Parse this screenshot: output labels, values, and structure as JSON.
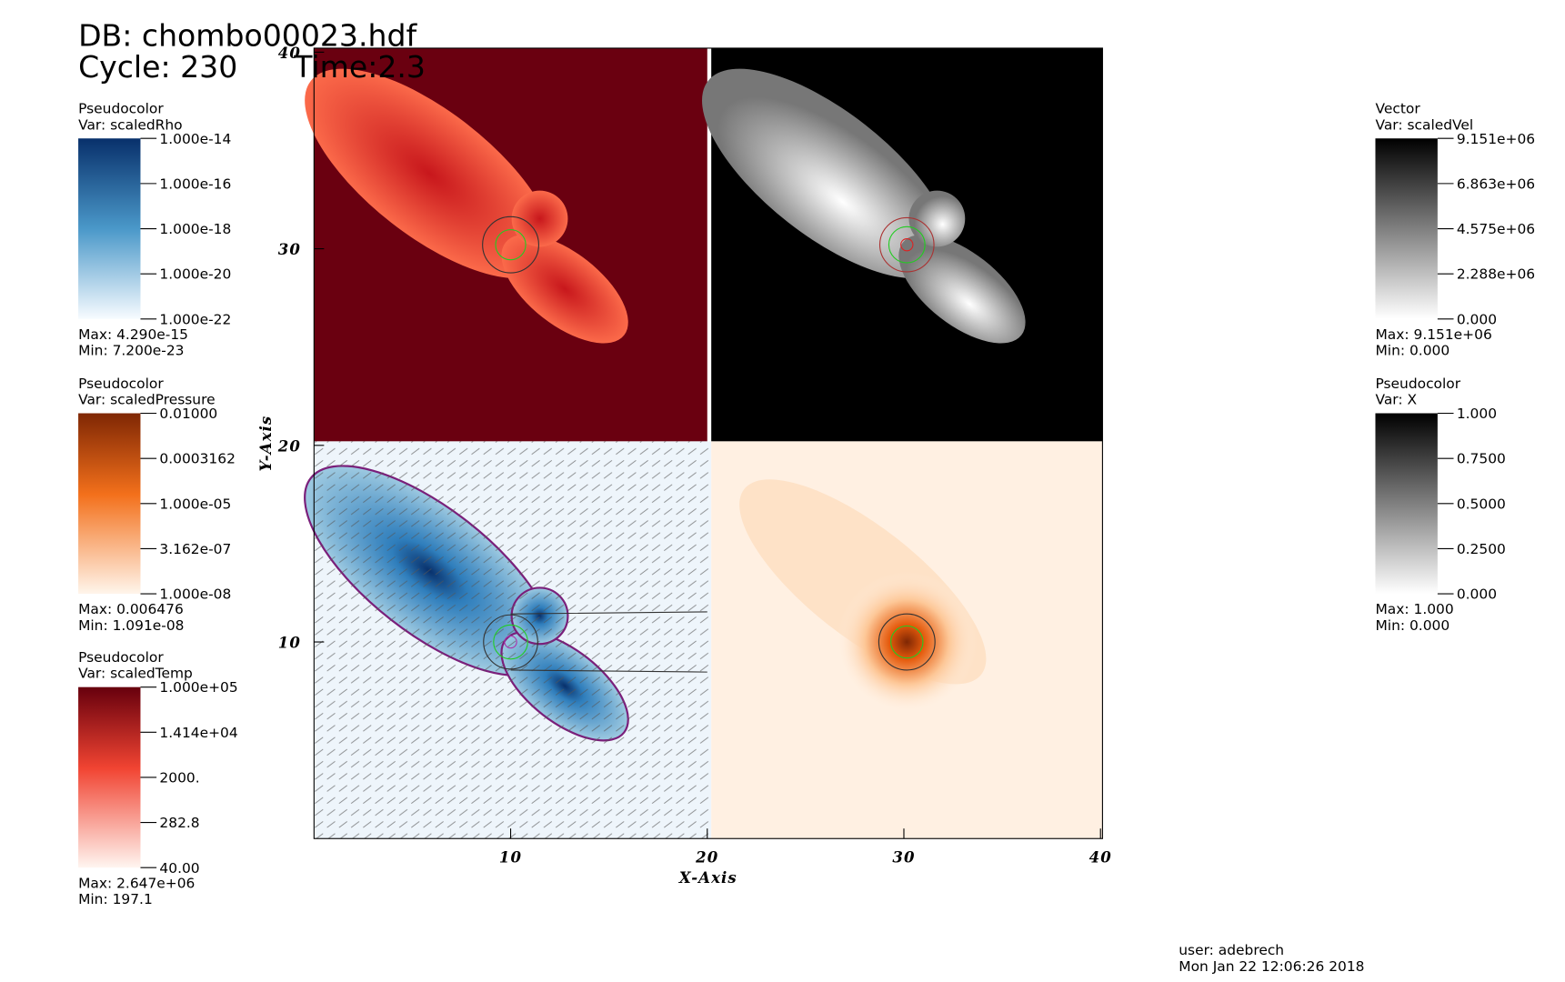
{
  "header": {
    "db": "DB: chombo00023.hdf",
    "cycle": "Cycle: 230",
    "time": "Time:2.3"
  },
  "legends": [
    {
      "title": "Pseudocolor",
      "var": "Var: scaledRho",
      "ticks": [
        "1.000e-14",
        "1.000e-16",
        "1.000e-18",
        "1.000e-20",
        "1.000e-22"
      ],
      "max": "Max:  4.290e-15",
      "min": "Min:  7.200e-23"
    },
    {
      "title": "Pseudocolor",
      "var": "Var: scaledPressure",
      "ticks": [
        "0.01000",
        "0.0003162",
        "1.000e-05",
        "3.162e-07",
        "1.000e-08"
      ],
      "max": "Max:  0.006476",
      "min": "Min:  1.091e-08"
    },
    {
      "title": "Pseudocolor",
      "var": "Var: scaledTemp",
      "ticks": [
        "1.000e+05",
        "1.414e+04",
        "2000.",
        "282.8",
        "40.00"
      ],
      "max": "Max:  2.647e+06",
      "min": "Min:  197.1"
    },
    {
      "title": "Vector",
      "var": "Var: scaledVel",
      "ticks": [
        "9.151e+06",
        "6.863e+06",
        "4.575e+06",
        "2.288e+06",
        "0.000"
      ],
      "max": "Max:  9.151e+06",
      "min": "Min:  0.000"
    },
    {
      "title": "Pseudocolor",
      "var": "Var: X",
      "ticks": [
        "1.000",
        "0.7500",
        "0.5000",
        "0.2500",
        "0.000"
      ],
      "max": "Max:  1.000",
      "min": "Min:  0.000"
    }
  ],
  "axes": {
    "xlabel": "X-Axis",
    "ylabel": "Y-Axis",
    "xlim": [
      0,
      40
    ],
    "ylim": [
      0,
      40
    ],
    "xticks": [
      10,
      20,
      30,
      40
    ],
    "yticks": [
      10,
      20,
      30,
      40
    ]
  },
  "footer": {
    "user": "user: adebrech",
    "date": "Mon Jan 22 12:06:26 2018"
  }
}
